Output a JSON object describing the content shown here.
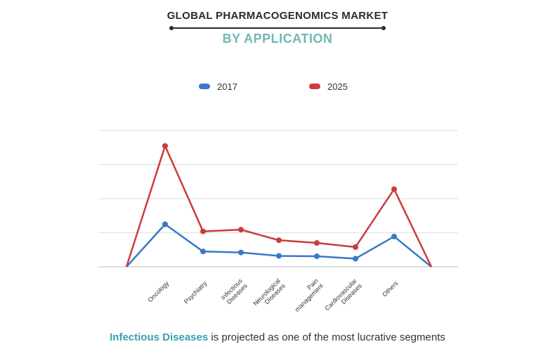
{
  "header": {
    "title": "GLOBAL PHARMACOGENOMICS MARKET",
    "subtitle": "BY APPLICATION"
  },
  "legend": [
    {
      "label": "2017",
      "color": "#3a78c9"
    },
    {
      "label": "2025",
      "color": "#cc3b3b"
    }
  ],
  "chart_data": {
    "type": "line",
    "categories": [
      "Oncology",
      "Psychiatry",
      "Infectious Diseases",
      "Neurological Diseases",
      "Pain management",
      "Cardiovascular Diseases",
      "Others"
    ],
    "category_labels": [
      [
        "Oncology"
      ],
      [
        "Psychiatry"
      ],
      [
        "Infectious",
        "Diseases"
      ],
      [
        "Neurological",
        "Diseases"
      ],
      [
        "Pain",
        "management"
      ],
      [
        "Cardiovascular",
        "Diseases"
      ],
      [
        "Others"
      ]
    ],
    "series": [
      {
        "name": "2017",
        "color": "#3a78c9",
        "values": [
          1.25,
          0.45,
          0.42,
          0.32,
          0.31,
          0.24,
          0.89
        ],
        "endpoints": [
          0,
          0
        ]
      },
      {
        "name": "2025",
        "color": "#cc3b3b",
        "values": [
          3.55,
          1.04,
          1.09,
          0.78,
          0.7,
          0.58,
          2.28
        ],
        "endpoints": [
          0,
          0
        ]
      }
    ],
    "ylim": [
      0,
      4
    ],
    "grid": true,
    "legend_position": "top"
  },
  "footer": {
    "highlight": "Infectious Diseases",
    "text": " is projected as one of the most lucrative segments"
  }
}
